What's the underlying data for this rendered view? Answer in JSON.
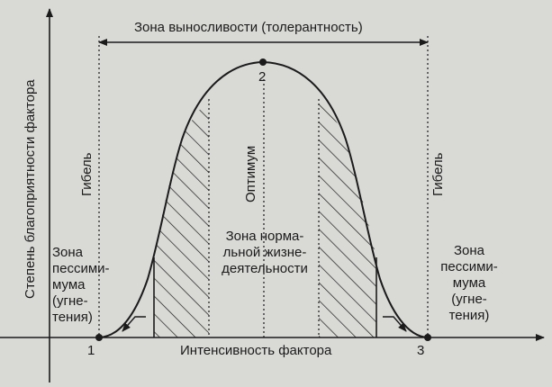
{
  "diagram": {
    "tolerance_zone": "Зона выносливости (толерантность)",
    "y_axis_label": "Степень благоприятности фактора",
    "x_axis_label": "Интенсивность фактора",
    "death_left": "Гибель",
    "death_right": "Гибель",
    "optimum": "Оптимум",
    "normal_zone": [
      "Зона норма-",
      "льной жизне-",
      "деятельности"
    ],
    "pessimum_left": [
      "Зона",
      "пессими-",
      "мума",
      "(угне-",
      "тения)"
    ],
    "pessimum_right": [
      "Зона",
      "пессими-",
      "мума",
      "(угне-",
      "тения)"
    ],
    "point_1": "1",
    "point_2": "2",
    "point_3": "3"
  },
  "colors": {
    "background": "#d9d9d6",
    "ink": "#1b1b1b"
  }
}
